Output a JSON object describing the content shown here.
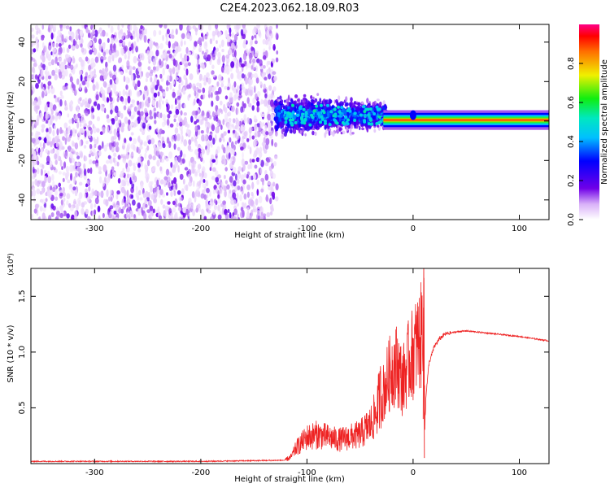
{
  "title": "C2E4.2023.062.18.09.R03",
  "chart_data": [
    {
      "type": "heatmap",
      "xlabel": "Height of straight line (km)",
      "ylabel": "Frequency (Hz)",
      "xlim": [
        -360,
        128
      ],
      "ylim": [
        -50,
        49
      ],
      "xticks": [
        -300,
        -200,
        -100,
        0,
        100
      ],
      "yticks": [
        -40,
        -20,
        0,
        20,
        40
      ],
      "colorbar": {
        "label": "Normalized spectral amplitude",
        "range": [
          0,
          1
        ],
        "ticks": [
          0.0,
          0.2,
          0.4,
          0.6,
          0.8
        ]
      },
      "regions": [
        {
          "x_range": [
            -360,
            -128
          ],
          "description_values": {
            "freq_span": [
              -50,
              49
            ],
            "amplitude": [
              0.02,
              0.15
            ]
          }
        },
        {
          "x_range": [
            -128,
            -30
          ],
          "description_values": {
            "freq_span": [
              -10,
              15
            ],
            "amplitude": [
              0.15,
              0.45
            ]
          }
        },
        {
          "x_range": [
            -30,
            128
          ],
          "description_values": {
            "freq_center": 0.5,
            "amplitude": [
              0.7,
              1.0
            ]
          }
        }
      ]
    },
    {
      "type": "line",
      "xlabel": "Height of straight line (km)",
      "ylabel": "SNR (10 * v/v)",
      "multiplier": "(x10⁴)",
      "xlim": [
        -360,
        128
      ],
      "ylim": [
        0,
        1.75
      ],
      "xticks": [
        -300,
        -200,
        -100,
        0,
        100
      ],
      "yticks": [
        0.5,
        1.0,
        1.5
      ],
      "series": [
        {
          "color": "#ee2222",
          "x": [
            -360,
            -300,
            -200,
            -120,
            -115,
            -110,
            -100,
            -90,
            -80,
            -70,
            -60,
            -50,
            -40,
            -35,
            -30,
            -25,
            -20,
            -15,
            -10,
            -5,
            0,
            5,
            8,
            10,
            11,
            12,
            15,
            20,
            25,
            30,
            40,
            50,
            60,
            80,
            100,
            128
          ],
          "y": [
            0.02,
            0.02,
            0.02,
            0.03,
            0.05,
            0.12,
            0.2,
            0.22,
            0.2,
            0.18,
            0.2,
            0.22,
            0.3,
            0.38,
            0.55,
            0.7,
            0.82,
            0.85,
            0.7,
            0.85,
            0.95,
            1.05,
            1.1,
            1.4,
            0.3,
            0.6,
            0.9,
            1.05,
            1.12,
            1.16,
            1.18,
            1.19,
            1.18,
            1.16,
            1.14,
            1.1
          ]
        }
      ]
    }
  ]
}
